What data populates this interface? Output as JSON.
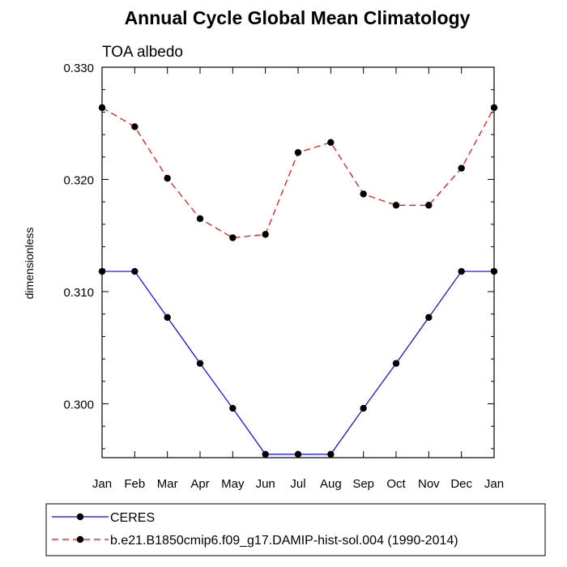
{
  "chart_data": {
    "type": "line",
    "title": "Annual Cycle Global Mean Climatology",
    "subtitle": "TOA albedo",
    "ylabel": "dimensionless",
    "xlabel": "",
    "categories": [
      "Jan",
      "Feb",
      "Mar",
      "Apr",
      "May",
      "Jun",
      "Jul",
      "Aug",
      "Sep",
      "Oct",
      "Nov",
      "Dec",
      "Jan"
    ],
    "ylim": [
      0.2952,
      0.33
    ],
    "yticks": [
      0.3,
      0.31,
      0.32,
      0.33
    ],
    "ytick_labels": [
      "0.300",
      "0.310",
      "0.320",
      "0.330"
    ],
    "grid": false,
    "legend_position": "bottom",
    "series": [
      {
        "name": "CERES",
        "color": "#0000ff",
        "line_style": "solid",
        "marker": "filled-circle",
        "values": [
          0.3118,
          0.3118,
          0.3077,
          0.3036,
          0.2996,
          0.2955,
          0.2955,
          0.2955,
          0.2996,
          0.3036,
          0.3077,
          0.3118,
          0.3118
        ]
      },
      {
        "name": "b.e21.B1850cmip6.f09_g17.DAMIP-hist-sol.004 (1990-2014)",
        "color": "#ff0000",
        "line_style": "dashed",
        "marker": "filled-circle",
        "values": [
          0.3264,
          0.3247,
          0.3201,
          0.3165,
          0.3148,
          0.3151,
          0.3224,
          0.3233,
          0.3187,
          0.3177,
          0.3177,
          0.321,
          0.3264
        ]
      }
    ]
  }
}
